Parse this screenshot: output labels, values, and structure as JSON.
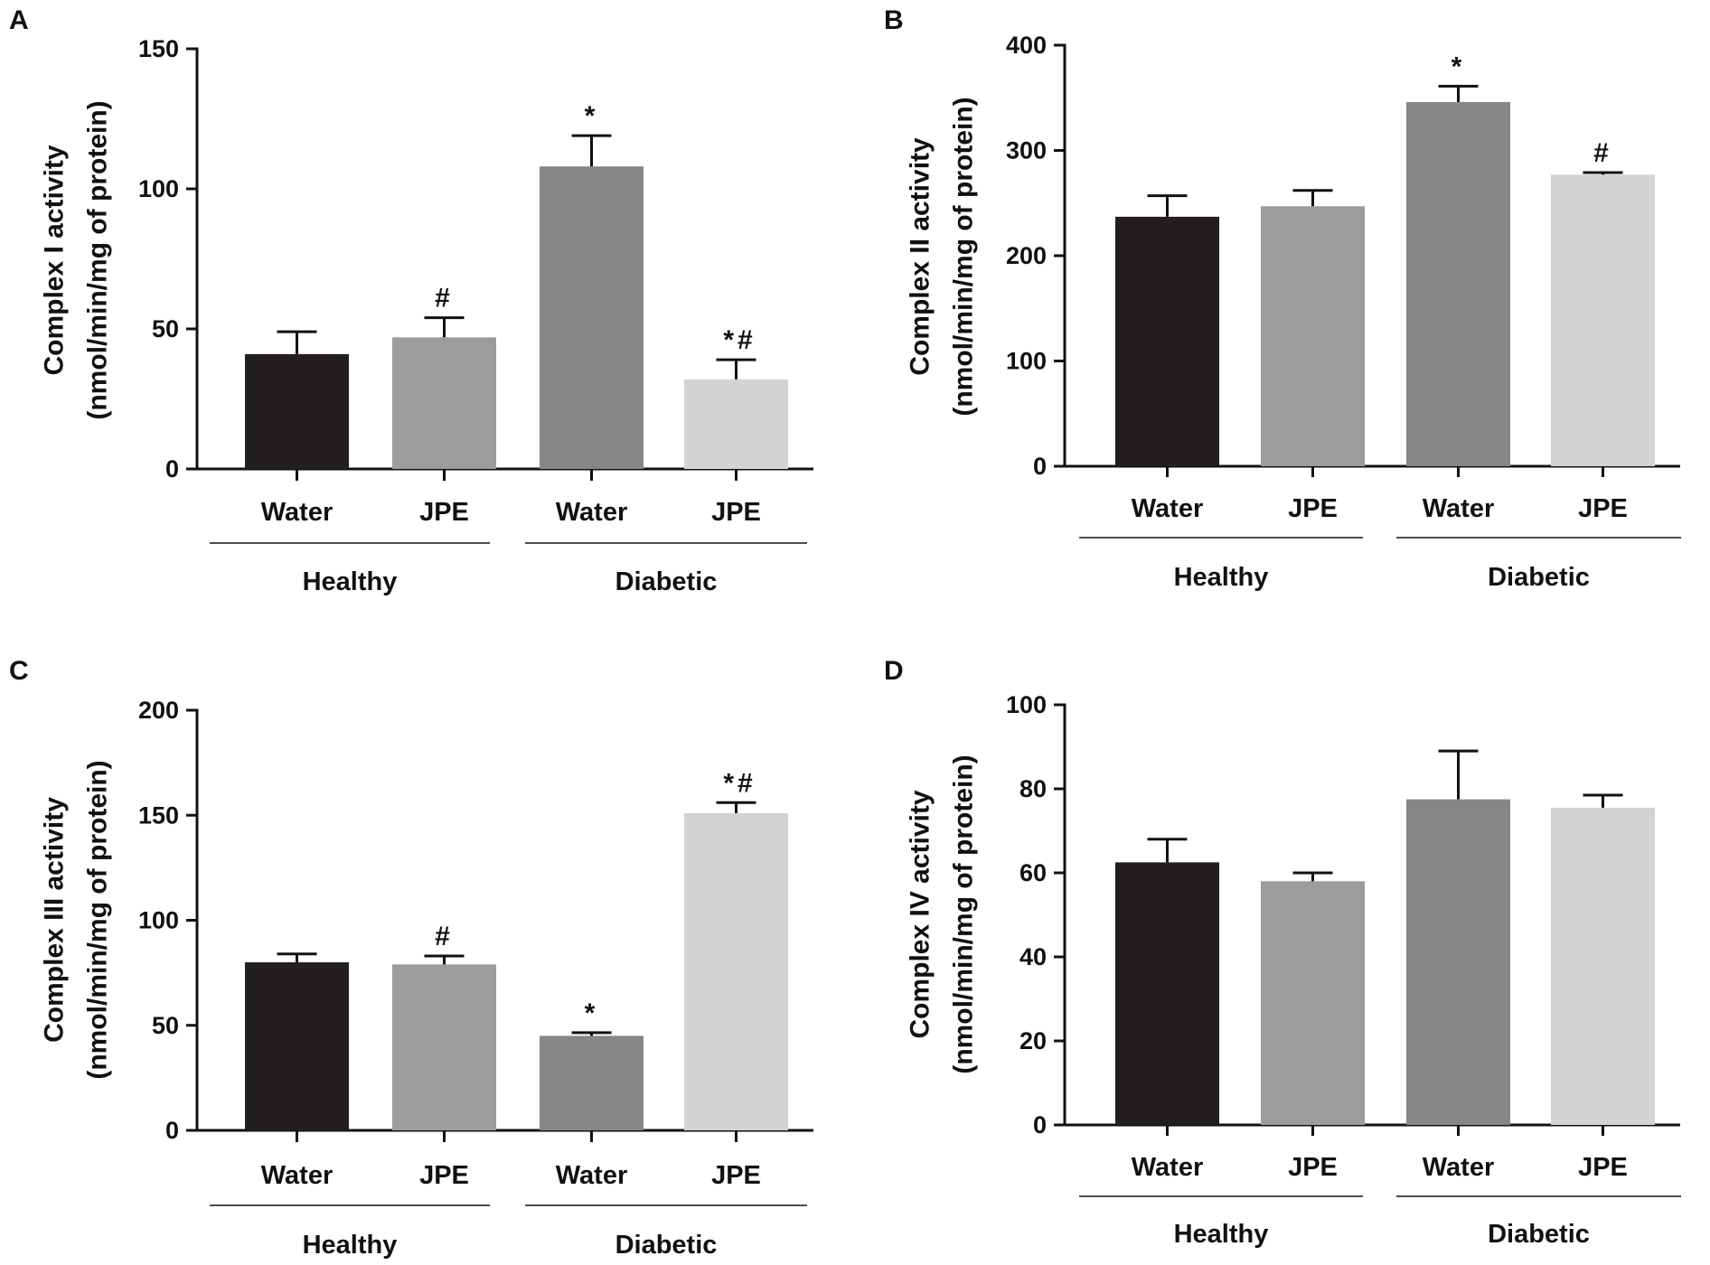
{
  "chart_data": [
    {
      "type": "bar",
      "panel": "A",
      "ylabel_line1": "Complex I activity",
      "ylabel_line2": "(nmol/min/mg of protein)",
      "ylim": [
        0,
        150
      ],
      "yticks": [
        0,
        50,
        100,
        150
      ],
      "categories": [
        "Water",
        "JPE",
        "Water",
        "JPE"
      ],
      "groups": [
        {
          "label": "Healthy"
        },
        {
          "label": "Diabetic"
        }
      ],
      "values": [
        41,
        47,
        108,
        32
      ],
      "errors": [
        8,
        7,
        11,
        7
      ],
      "colors": [
        "#231f20",
        "#9b9c9e",
        "#858688",
        "#d1d3d4"
      ],
      "annotations": [
        "",
        "#",
        "*",
        "*#"
      ]
    },
    {
      "type": "bar",
      "panel": "B",
      "ylabel_line1": "Complex II activity",
      "ylabel_line2": "(nmol/min/mg of protein)",
      "ylim": [
        0,
        400
      ],
      "yticks": [
        0,
        100,
        200,
        300,
        400
      ],
      "categories": [
        "Water",
        "JPE",
        "Water",
        "JPE"
      ],
      "groups": [
        {
          "label": "Healthy"
        },
        {
          "label": "Diabetic"
        }
      ],
      "values": [
        237,
        247,
        346,
        277
      ],
      "errors": [
        20,
        15,
        15,
        2
      ],
      "colors": [
        "#231f20",
        "#9b9c9e",
        "#858688",
        "#d1d3d4"
      ],
      "annotations": [
        "",
        "",
        "*",
        "#"
      ]
    },
    {
      "type": "bar",
      "panel": "C",
      "ylabel_line1": "Complex III activity",
      "ylabel_line2": "(nmol/min/mg of protein)",
      "ylim": [
        0,
        200
      ],
      "yticks": [
        0,
        50,
        100,
        150,
        200
      ],
      "categories": [
        "Water",
        "JPE",
        "Water",
        "JPE"
      ],
      "groups": [
        {
          "label": "Healthy"
        },
        {
          "label": "Diabetic"
        }
      ],
      "values": [
        80,
        79,
        45,
        151
      ],
      "errors": [
        4,
        4,
        1.5,
        5
      ],
      "colors": [
        "#231f20",
        "#9b9c9e",
        "#858688",
        "#d1d3d4"
      ],
      "annotations": [
        "",
        "#",
        "*",
        "*#"
      ]
    },
    {
      "type": "bar",
      "panel": "D",
      "ylabel_line1": "Complex IV activity",
      "ylabel_line2": "(nmol/min/mg of protein)",
      "ylim": [
        0,
        100
      ],
      "yticks": [
        0,
        20,
        40,
        60,
        80,
        100
      ],
      "categories": [
        "Water",
        "JPE",
        "Water",
        "JPE"
      ],
      "groups": [
        {
          "label": "Healthy"
        },
        {
          "label": "Diabetic"
        }
      ],
      "values": [
        62.5,
        58,
        77.5,
        75.5
      ],
      "errors": [
        5.5,
        2,
        11.5,
        3
      ],
      "colors": [
        "#231f20",
        "#9b9c9e",
        "#858688",
        "#d1d3d4"
      ],
      "annotations": [
        "",
        "",
        "",
        ""
      ]
    }
  ]
}
